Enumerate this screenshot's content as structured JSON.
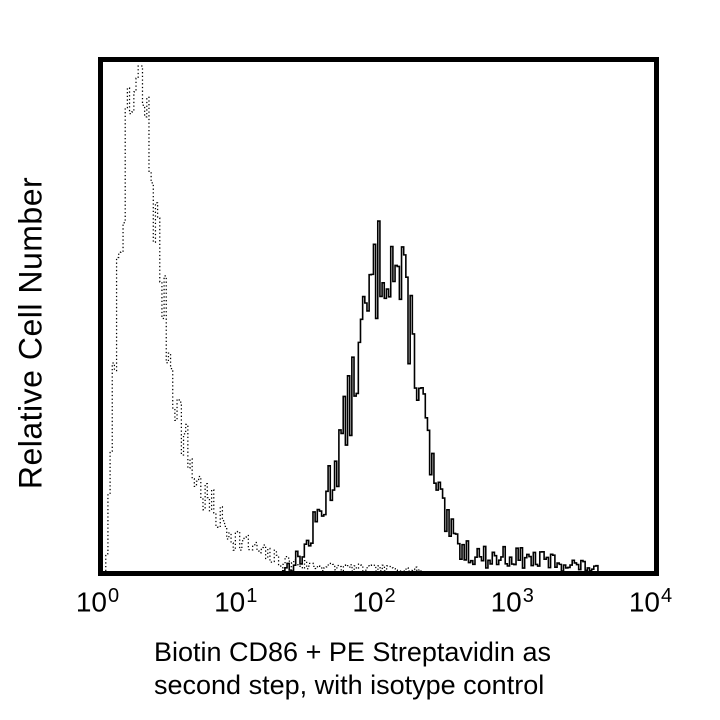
{
  "figure": {
    "background_color": "#ffffff",
    "foreground_color": "#000000"
  },
  "caption": {
    "line1": "Biotin CD86 + PE Streptavidin as",
    "line2": "second step, with isotype control"
  },
  "chart_data": {
    "type": "line",
    "subtype": "flow-cytometry-overlay-histogram",
    "title": "",
    "ylabel": "Relative Cell Number",
    "xlabel_caption": [
      "Biotin CD86 + PE Streptavidin as",
      "second step, with isotype control"
    ],
    "x_scale": "log10",
    "x_axis": {
      "tick_base": "10",
      "tick_exponents": [
        0,
        1,
        2,
        3,
        4
      ],
      "min_exponent": 0,
      "max_exponent": 4
    },
    "y_axis": {
      "label": "Relative Cell Number",
      "range_percent": [
        0,
        100
      ],
      "ticks": "none"
    },
    "grid": false,
    "legend": "none",
    "bins_per_decade": 64,
    "series": [
      {
        "name": "isotype control",
        "line_style": "dotted",
        "color": "#000000",
        "peak_x": 2,
        "peak_height_percent": 97,
        "noise_seed": 7,
        "noise_k": 1.1,
        "points_log10x_heightpct": [
          [
            0.02,
            1
          ],
          [
            0.05,
            15
          ],
          [
            0.08,
            40
          ],
          [
            0.12,
            65
          ],
          [
            0.16,
            80
          ],
          [
            0.2,
            90
          ],
          [
            0.24,
            95
          ],
          [
            0.28,
            97
          ],
          [
            0.32,
            88
          ],
          [
            0.36,
            76
          ],
          [
            0.41,
            62
          ],
          [
            0.46,
            48
          ],
          [
            0.52,
            36
          ],
          [
            0.58,
            27
          ],
          [
            0.66,
            19
          ],
          [
            0.75,
            14
          ],
          [
            0.85,
            10
          ],
          [
            0.95,
            7
          ],
          [
            1.05,
            5
          ],
          [
            1.15,
            3.5
          ],
          [
            1.3,
            2
          ],
          [
            1.45,
            1.2
          ],
          [
            1.65,
            0.8
          ],
          [
            1.9,
            0.5
          ],
          [
            2.1,
            0.4
          ],
          [
            2.3,
            0.2
          ]
        ]
      },
      {
        "name": "Biotin CD86 + PE Streptavidin",
        "line_style": "solid",
        "color": "#000000",
        "peak_x": 100,
        "peak_height_percent": 63,
        "noise_seed": 13,
        "noise_k": 1.3,
        "points_log10x_heightpct": [
          [
            1.3,
            0.4
          ],
          [
            1.38,
            1.5
          ],
          [
            1.46,
            4
          ],
          [
            1.54,
            9
          ],
          [
            1.6,
            14
          ],
          [
            1.66,
            19
          ],
          [
            1.72,
            25
          ],
          [
            1.78,
            32
          ],
          [
            1.84,
            41
          ],
          [
            1.9,
            50
          ],
          [
            1.95,
            56
          ],
          [
            2.0,
            61
          ],
          [
            2.05,
            63
          ],
          [
            2.1,
            61
          ],
          [
            2.15,
            57
          ],
          [
            2.2,
            52
          ],
          [
            2.25,
            45
          ],
          [
            2.3,
            35
          ],
          [
            2.35,
            25
          ],
          [
            2.4,
            17
          ],
          [
            2.45,
            12
          ],
          [
            2.5,
            8
          ],
          [
            2.56,
            5.5
          ],
          [
            2.64,
            4
          ],
          [
            2.72,
            3
          ],
          [
            2.82,
            2.5
          ],
          [
            2.92,
            3
          ],
          [
            3.02,
            2.6
          ],
          [
            3.12,
            2.2
          ],
          [
            3.22,
            2
          ],
          [
            3.32,
            1.6
          ],
          [
            3.42,
            1.2
          ],
          [
            3.52,
            0.7
          ],
          [
            3.58,
            0.3
          ]
        ]
      }
    ]
  }
}
